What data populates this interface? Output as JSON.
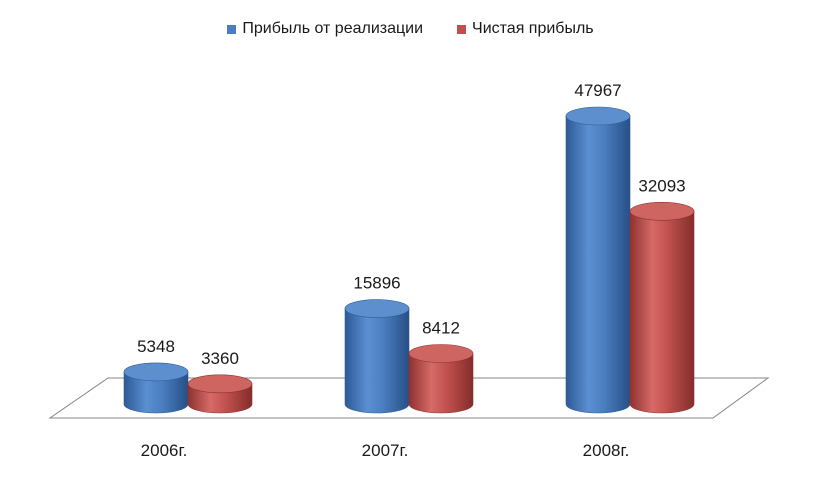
{
  "chart_data": {
    "type": "bar",
    "categories": [
      "2006г.",
      "2007г.",
      "2008г."
    ],
    "series": [
      {
        "name": "Прибыль от реализации",
        "values": [
          5348,
          15896,
          47967
        ],
        "color": "#4a7ebf"
      },
      {
        "name": "Чистая прибыль",
        "values": [
          3360,
          8412,
          32093
        ],
        "color": "#c0504d"
      }
    ],
    "legend_position": "top",
    "grid": false
  }
}
